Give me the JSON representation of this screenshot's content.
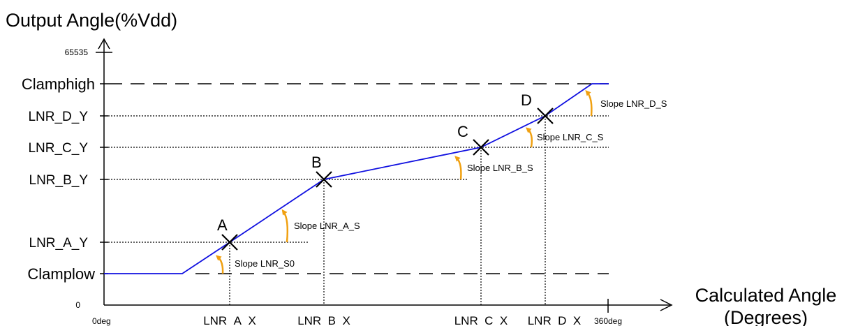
{
  "title": {
    "y_axis": "Output Angle(%Vdd)",
    "x_axis_line1": "Calculated Angle",
    "x_axis_line2": "(Degrees)"
  },
  "y_labels": {
    "max": "65535",
    "clamp_high": "Clamphigh",
    "d": "LNR_D_Y",
    "c": "LNR_C_Y",
    "b": "LNR_B_Y",
    "a": "LNR_A_Y",
    "clamp_low": "Clamplow",
    "zero": "0"
  },
  "x_labels": {
    "start": "0deg",
    "a": "LNR_A_X",
    "b": "LNR_B_X",
    "c": "LNR_C_X",
    "d": "LNR_D_X",
    "end": "360deg"
  },
  "points": {
    "a": "A",
    "b": "B",
    "c": "C",
    "d": "D"
  },
  "slopes": {
    "s0": "Slope LNR_S0",
    "a": "Slope LNR_A_S",
    "b": "Slope LNR_B_S",
    "c": "Slope LNR_C_S",
    "d": "Slope LNR_D_S"
  },
  "colors": {
    "curve": "#1010e0",
    "slope_arrow": "#f0a010",
    "axis": "#000000"
  }
}
